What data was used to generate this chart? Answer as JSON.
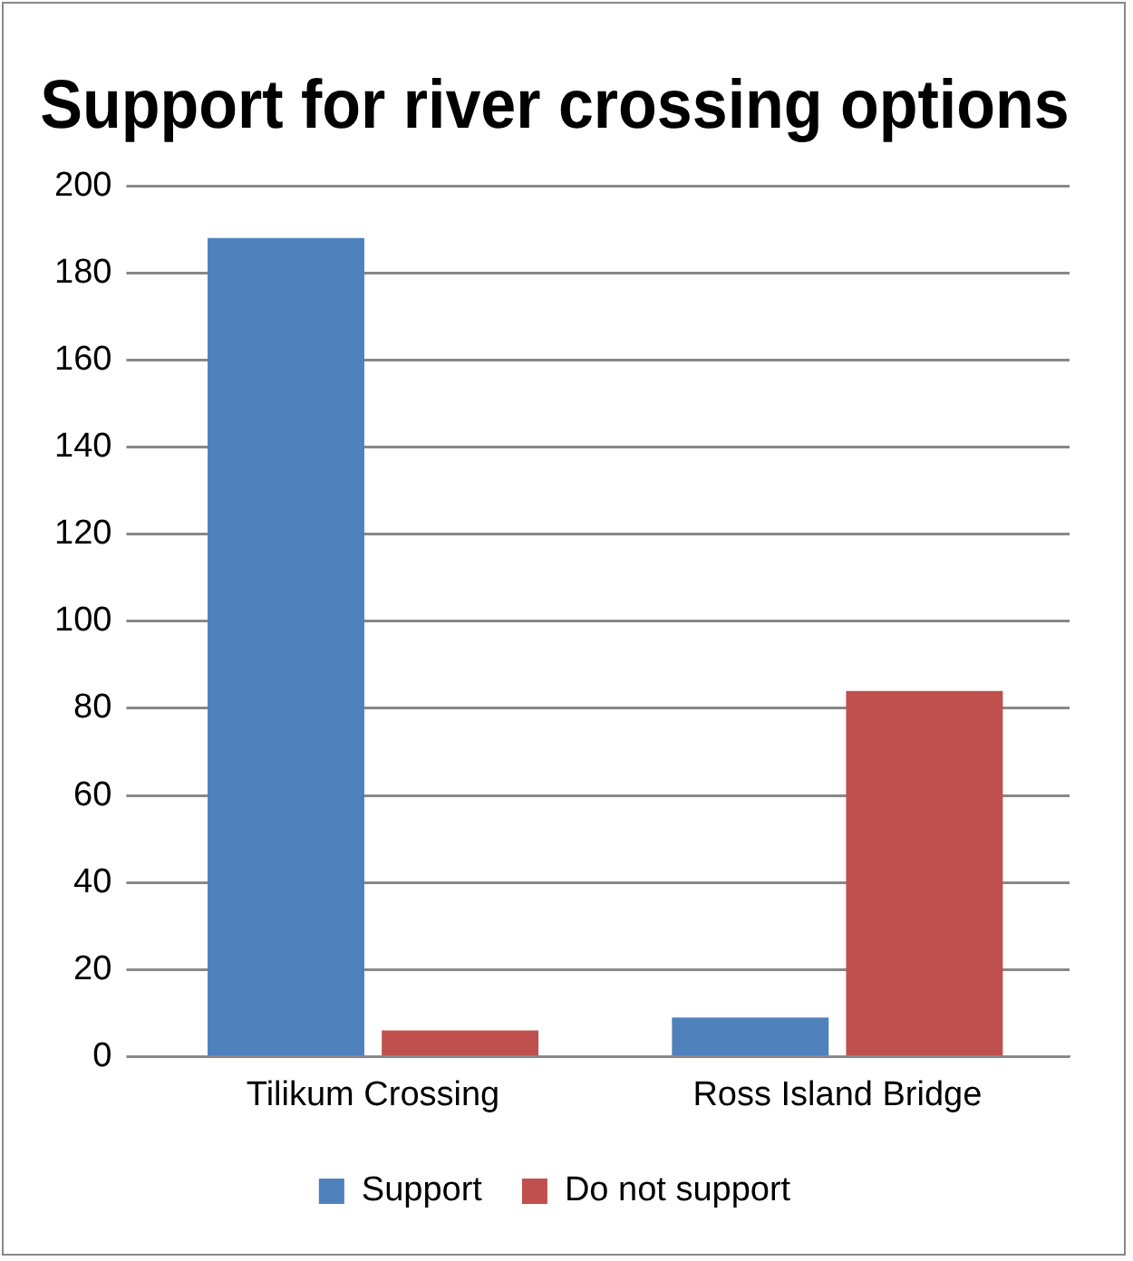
{
  "chart_data": {
    "type": "bar",
    "title": "Support for river crossing options",
    "categories": [
      "Tilikum Crossing",
      "Ross Island Bridge"
    ],
    "series": [
      {
        "name": "Support",
        "color": "#4f81bd",
        "values": [
          188,
          9
        ]
      },
      {
        "name": "Do not support",
        "color": "#c0504d",
        "values": [
          6,
          84
        ]
      }
    ],
    "ylim": [
      0,
      200
    ],
    "yticks": [
      0,
      20,
      40,
      60,
      80,
      100,
      120,
      140,
      160,
      180,
      200
    ],
    "grid": "y",
    "legend": "bottom"
  }
}
